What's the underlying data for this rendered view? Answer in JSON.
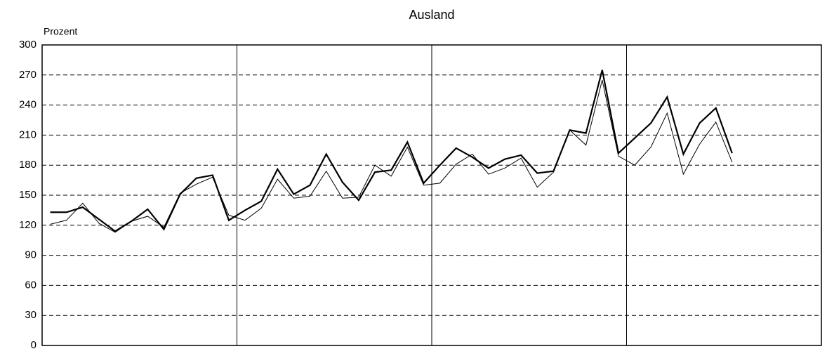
{
  "chart_data": {
    "type": "line",
    "title": "Ausland",
    "y_label": "Prozent",
    "categories": [
      null,
      null,
      null,
      null,
      null,
      null,
      null,
      null,
      null,
      null,
      null,
      null,
      null,
      null,
      null,
      null,
      null,
      null,
      null,
      null,
      null,
      null,
      null,
      null,
      null,
      null,
      null,
      null,
      null,
      null,
      null,
      null,
      null,
      null,
      null,
      null,
      null,
      null,
      null,
      null,
      null,
      null,
      null,
      null,
      null,
      null,
      null,
      null
    ],
    "series": [
      {
        "color": "#000000",
        "width": 2.2,
        "values": [
          133,
          133,
          138,
          126,
          114,
          124,
          136,
          116,
          151,
          167,
          170,
          125,
          135,
          144,
          176,
          151,
          160,
          191,
          163,
          145,
          173,
          175,
          203,
          162,
          180,
          197,
          188,
          177,
          186,
          190,
          172,
          174,
          215,
          212,
          275,
          192,
          207,
          222,
          248,
          191,
          222,
          237,
          192,
          null,
          null,
          null,
          null,
          null
        ]
      },
      {
        "color": "#000000",
        "width": 1,
        "values": [
          121,
          125,
          142,
          122,
          113,
          124,
          129,
          118,
          152,
          161,
          168,
          130,
          125,
          137,
          166,
          147,
          149,
          174,
          147,
          148,
          180,
          169,
          198,
          160,
          162,
          181,
          191,
          171,
          177,
          187,
          158,
          173,
          215,
          200,
          265,
          189,
          180,
          198,
          232,
          171,
          201,
          223,
          183,
          null,
          null,
          null,
          null,
          null
        ]
      }
    ],
    "ylim": [
      0,
      300
    ],
    "yticks": [
      0,
      30,
      60,
      90,
      120,
      150,
      180,
      210,
      240,
      270,
      300
    ],
    "grid": true
  }
}
